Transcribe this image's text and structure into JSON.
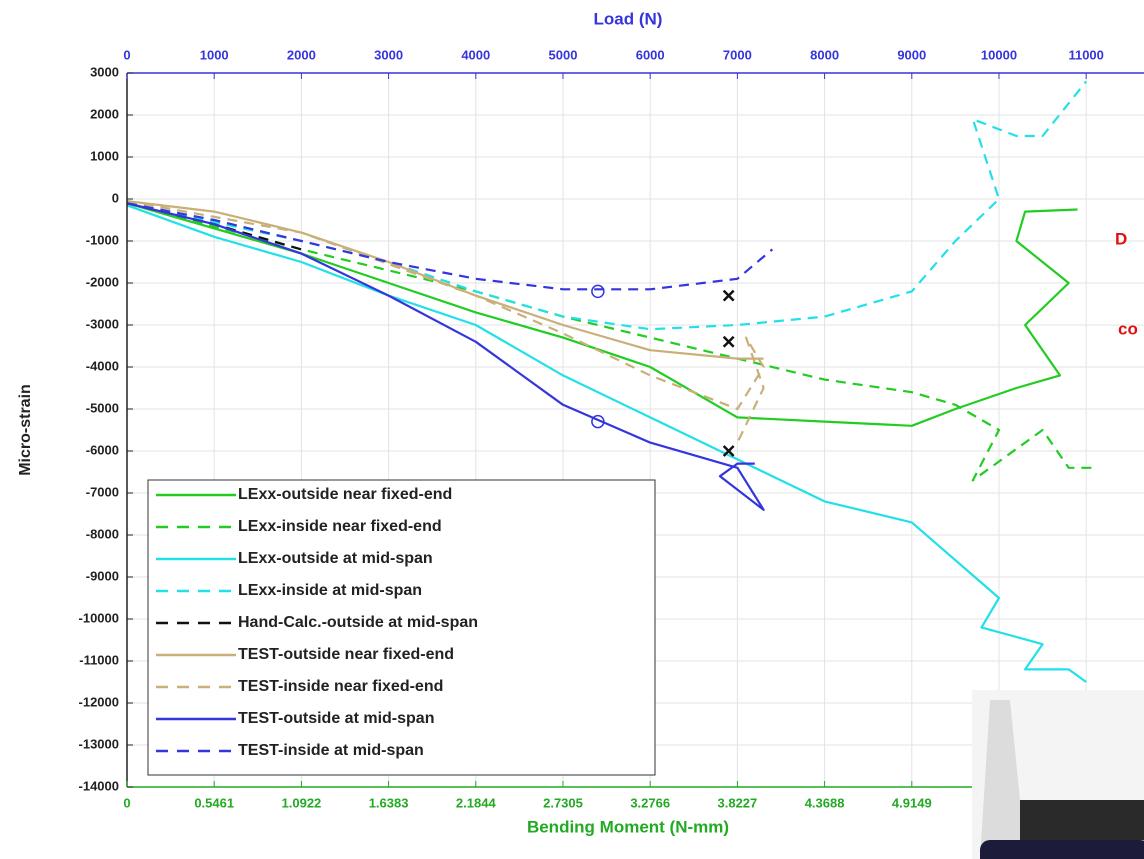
{
  "chart_data": {
    "type": "line",
    "top_axis_label": "Load (N)",
    "y_axis_label": "Micro-strain",
    "bottom_axis_label": "Bending Moment (N-mm)",
    "annotations": [
      "D",
      "co"
    ],
    "xlim": [
      0,
      11663
    ],
    "xticks": [
      0,
      1000,
      2000,
      3000,
      4000,
      5000,
      6000,
      7000,
      8000,
      9000,
      10000,
      11000
    ],
    "x2lim": [
      0,
      6.3691
    ],
    "x2ticks": [
      0,
      0.5461,
      1.0922,
      1.6383,
      2.1844,
      2.7305,
      3.2766,
      3.8227,
      4.3688,
      4.9149
    ],
    "ylim": [
      -14000,
      3000
    ],
    "yticks": [
      3000,
      2000,
      1000,
      0,
      -1000,
      -2000,
      -3000,
      -4000,
      -5000,
      -6000,
      -7000,
      -8000,
      -9000,
      -10000,
      -11000,
      -12000,
      -13000,
      -14000
    ],
    "grid": true,
    "legend": "lower left",
    "series": [
      {
        "name": "LExx-outside near fixed-end",
        "color": "#22cc22",
        "dash": false,
        "x": [
          0,
          2000,
          3000,
          4000,
          5000,
          6000,
          7000,
          8000,
          9000,
          9500,
          10200,
          10700,
          10300,
          10800,
          10200,
          10300,
          10900
        ],
        "values": [
          -100,
          -1300,
          -2000,
          -2700,
          -3300,
          -4000,
          -5200,
          -5300,
          -5400,
          -5000,
          -4500,
          -4200,
          -3000,
          -2000,
          -1000,
          -300,
          -250
        ]
      },
      {
        "name": "LExx-inside near fixed-end",
        "color": "#22cc22",
        "dash": true,
        "x": [
          0,
          2000,
          3000,
          4000,
          5000,
          6000,
          7000,
          8000,
          9000,
          9500,
          10000,
          9700,
          10500,
          10800,
          11100
        ],
        "values": [
          -100,
          -1200,
          -1700,
          -2200,
          -2800,
          -3300,
          -3800,
          -4300,
          -4600,
          -4900,
          -5500,
          -6700,
          -5500,
          -6400,
          -6400
        ]
      },
      {
        "name": "LExx-outside at mid-span",
        "color": "#22e0e8",
        "dash": false,
        "x": [
          0,
          1000,
          2000,
          3000,
          4000,
          5000,
          6000,
          7000,
          8000,
          9000,
          10000,
          9800,
          10500,
          10300,
          10800,
          11000
        ],
        "values": [
          -150,
          -900,
          -1500,
          -2300,
          -3000,
          -4200,
          -5200,
          -6200,
          -7200,
          -7700,
          -9500,
          -10200,
          -10600,
          -11200,
          -11200,
          -11500
        ]
      },
      {
        "name": "LExx-inside at mid-span",
        "color": "#22e0e8",
        "dash": true,
        "x": [
          0,
          2000,
          3000,
          4000,
          5000,
          6000,
          7000,
          8000,
          9000,
          9500,
          10000,
          9700,
          10200,
          10500,
          11000
        ],
        "values": [
          -100,
          -1000,
          -1500,
          -2200,
          -2800,
          -3100,
          -3000,
          -2800,
          -2200,
          -1000,
          0,
          1900,
          1500,
          1500,
          2800
        ]
      },
      {
        "name": "Hand-Calc.-outside at mid-span",
        "color": "#111111",
        "dash": true,
        "x": [
          0,
          1000,
          2000
        ],
        "values": [
          -100,
          -600,
          -1200
        ]
      },
      {
        "name": "TEST-outside near fixed-end",
        "color": "#c8b078",
        "dash": false,
        "x": [
          0,
          1000,
          2000,
          3000,
          4000,
          5000,
          6000,
          7000,
          7300
        ],
        "values": [
          -50,
          -300,
          -800,
          -1500,
          -2300,
          -3000,
          -3600,
          -3800,
          -3800
        ]
      },
      {
        "name": "TEST-inside near fixed-end",
        "color": "#c8b078",
        "dash": true,
        "x": [
          0,
          2000,
          4000,
          5000,
          6000,
          7000,
          7300,
          7100,
          7300,
          7000
        ],
        "values": [
          -50,
          -800,
          -2300,
          -3200,
          -4200,
          -5000,
          -4000,
          -3300,
          -4500,
          -5800
        ]
      },
      {
        "name": "TEST-outside at mid-span",
        "color": "#3535dd",
        "dash": false,
        "x": [
          0,
          1000,
          2000,
          3000,
          4000,
          5000,
          6000,
          7000,
          7300,
          6800,
          7000,
          7200
        ],
        "values": [
          -100,
          -600,
          -1300,
          -2300,
          -3400,
          -4900,
          -5800,
          -6400,
          -7400,
          -6600,
          -6300,
          -6300
        ]
      },
      {
        "name": "TEST-inside at mid-span",
        "color": "#3535dd",
        "dash": true,
        "x": [
          0,
          1000,
          2000,
          3000,
          4000,
          5000,
          6000,
          7000,
          7400
        ],
        "values": [
          -100,
          -500,
          -1000,
          -1500,
          -1900,
          -2150,
          -2150,
          -1900,
          -1200
        ]
      }
    ],
    "markers": [
      {
        "x": 6900,
        "y": -2300,
        "shape": "x",
        "color": "#111111"
      },
      {
        "x": 6900,
        "y": -3400,
        "shape": "x",
        "color": "#111111"
      },
      {
        "x": 6900,
        "y": -6000,
        "shape": "x",
        "color": "#111111"
      },
      {
        "x": 5400,
        "y": -5300,
        "shape": "circle",
        "color": "#3535dd"
      },
      {
        "x": 5400,
        "y": -2200,
        "shape": "circle",
        "color": "#3535dd"
      }
    ]
  }
}
